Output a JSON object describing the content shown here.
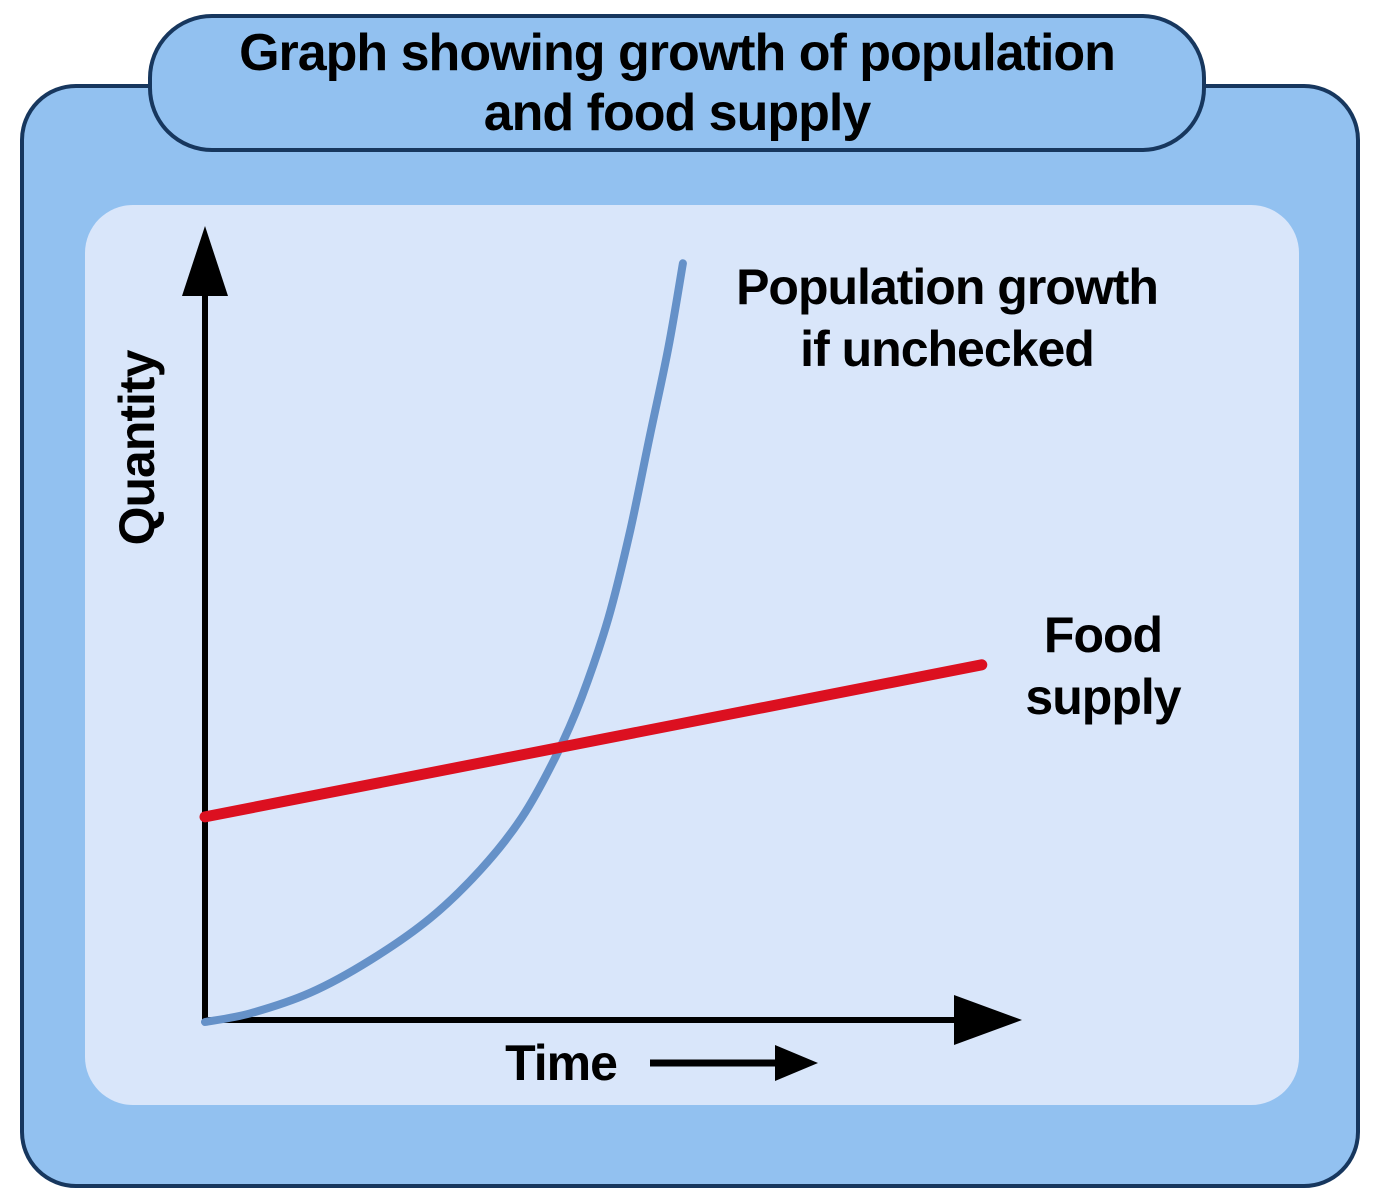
{
  "title": {
    "text": "Graph showing growth of population\nand food supply"
  },
  "axes": {
    "ylabel": "Quantity",
    "xlabel": "Time"
  },
  "annotations": {
    "population_label": "Population growth\nif unchecked",
    "food_label": "Food\nsupply"
  },
  "colors": {
    "outer_fill": "#92c1f0",
    "panel_fill": "#d9e6fa",
    "frame_border": "#17375e",
    "population": "#6591c8",
    "food": "#dc1020",
    "axis": "#000000",
    "text": "#000000",
    "page_bg": "#ffffff"
  },
  "chart_data": {
    "type": "line",
    "title": "Graph showing growth of population and food supply",
    "xlabel": "Time",
    "ylabel": "Quantity",
    "x_axis_numeric": false,
    "y_axis_numeric": false,
    "xlim": [
      0,
      10
    ],
    "ylim": [
      0,
      10
    ],
    "grid": false,
    "legend_position": "inline-annotations",
    "series": [
      {
        "name": "Population growth if unchecked",
        "color": "#6591c8",
        "shape": "exponential",
        "points": [
          [
            0,
            0
          ],
          [
            0.56,
            0.11
          ],
          [
            1.3,
            0.37
          ],
          [
            2.04,
            0.78
          ],
          [
            2.78,
            1.31
          ],
          [
            3.4,
            1.92
          ],
          [
            3.91,
            2.58
          ],
          [
            4.33,
            3.35
          ],
          [
            4.65,
            4.1
          ],
          [
            4.98,
            5.1
          ],
          [
            5.25,
            6.21
          ],
          [
            5.49,
            7.39
          ],
          [
            5.72,
            8.51
          ],
          [
            5.9,
            9.58
          ]
        ]
      },
      {
        "name": "Food supply",
        "color": "#dc1020",
        "shape": "linear",
        "points": [
          [
            0,
            2.59
          ],
          [
            9.59,
            4.51
          ]
        ]
      }
    ]
  }
}
